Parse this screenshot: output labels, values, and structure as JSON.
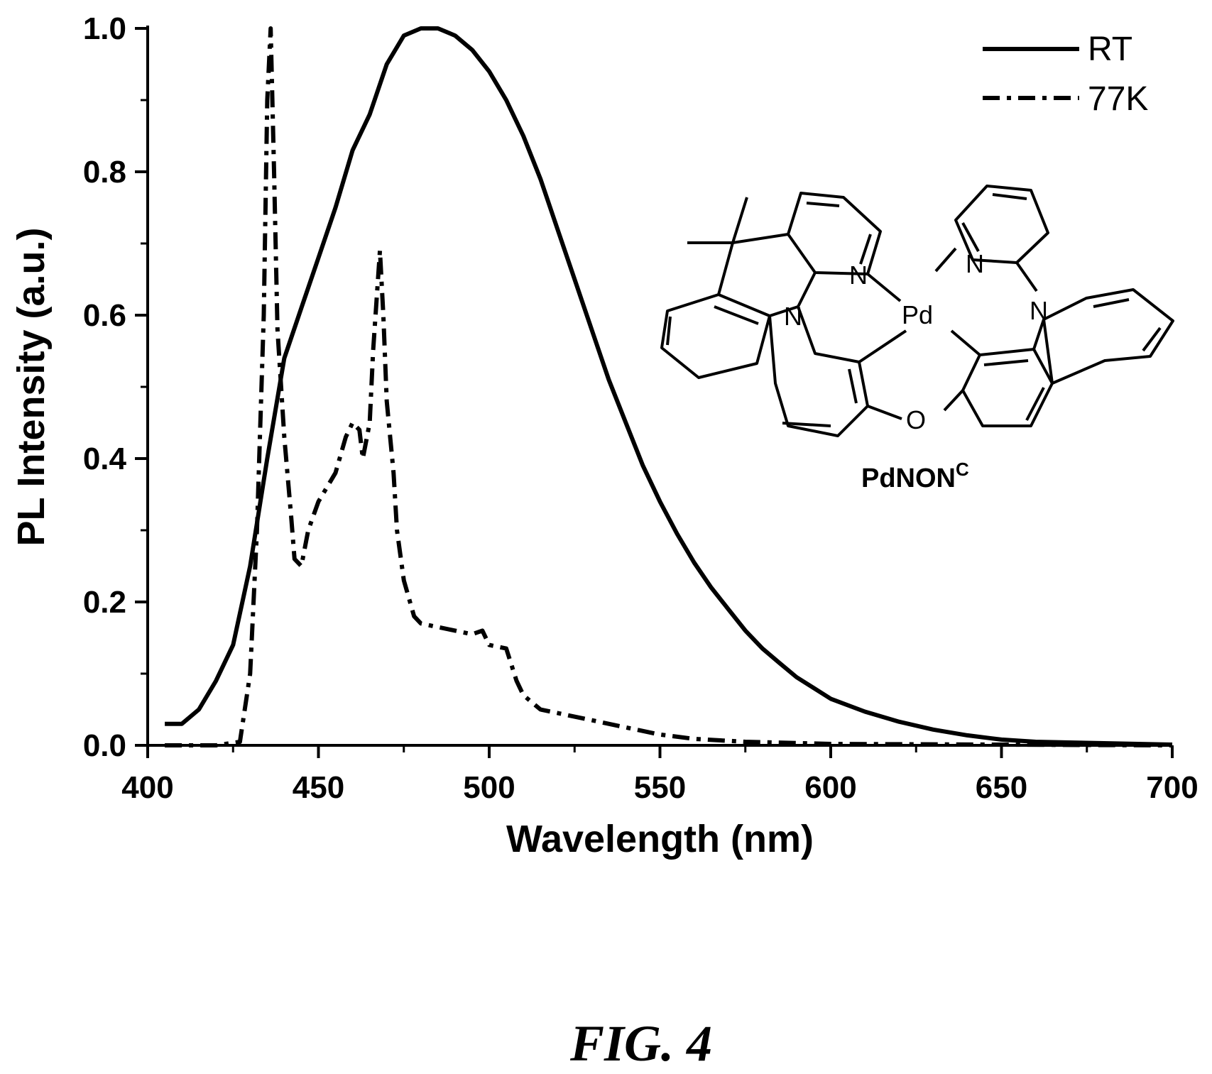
{
  "chart_data": {
    "type": "line",
    "xlabel": "Wavelength (nm)",
    "ylabel": "PL Intensity (a.u.)",
    "xlim": [
      400,
      700
    ],
    "ylim": [
      0,
      1.0
    ],
    "x_ticks": [
      "400",
      "450",
      "500",
      "550",
      "600",
      "650",
      "700"
    ],
    "y_ticks": [
      "0.0",
      "0.2",
      "0.4",
      "0.6",
      "0.8",
      "1.0"
    ],
    "legend_position": "top-right",
    "grid": false,
    "series": [
      {
        "name": "RT",
        "style": "solid",
        "color": "#000000",
        "x": [
          405,
          410,
          415,
          420,
          425,
          430,
          435,
          440,
          445,
          450,
          455,
          460,
          465,
          470,
          475,
          480,
          485,
          490,
          495,
          500,
          505,
          510,
          515,
          520,
          525,
          530,
          535,
          540,
          545,
          550,
          555,
          560,
          565,
          570,
          575,
          580,
          585,
          590,
          595,
          600,
          610,
          620,
          630,
          640,
          650,
          660,
          670,
          680,
          690,
          700
        ],
        "y": [
          0.03,
          0.03,
          0.05,
          0.09,
          0.14,
          0.25,
          0.4,
          0.54,
          0.61,
          0.68,
          0.75,
          0.83,
          0.88,
          0.95,
          0.99,
          1.0,
          1.0,
          0.99,
          0.97,
          0.94,
          0.9,
          0.85,
          0.79,
          0.72,
          0.65,
          0.58,
          0.51,
          0.45,
          0.39,
          0.34,
          0.295,
          0.255,
          0.22,
          0.19,
          0.16,
          0.135,
          0.115,
          0.095,
          0.08,
          0.065,
          0.047,
          0.033,
          0.022,
          0.014,
          0.008,
          0.005,
          0.004,
          0.003,
          0.002,
          0.001
        ]
      },
      {
        "name": "77K",
        "style": "dash-dot",
        "color": "#000000",
        "x": [
          405,
          410,
          420,
          427,
          430,
          432,
          434,
          435,
          436,
          437,
          438,
          440,
          442,
          443,
          445,
          447,
          450,
          455,
          458,
          460,
          462,
          463,
          465,
          466,
          467,
          468,
          469,
          470,
          472,
          473,
          475,
          478,
          480,
          485,
          490,
          495,
          498,
          500,
          505,
          508,
          510,
          515,
          520,
          530,
          540,
          550,
          560,
          575,
          600,
          650,
          700
        ],
        "y": [
          0.0,
          0.0,
          0.0,
          0.005,
          0.1,
          0.3,
          0.6,
          0.9,
          1.0,
          0.8,
          0.58,
          0.43,
          0.32,
          0.26,
          0.25,
          0.3,
          0.34,
          0.38,
          0.43,
          0.45,
          0.44,
          0.4,
          0.45,
          0.55,
          0.62,
          0.69,
          0.6,
          0.48,
          0.38,
          0.3,
          0.23,
          0.18,
          0.17,
          0.165,
          0.16,
          0.155,
          0.16,
          0.14,
          0.135,
          0.09,
          0.07,
          0.05,
          0.045,
          0.035,
          0.025,
          0.015,
          0.009,
          0.005,
          0.002,
          0.001,
          0.0
        ]
      }
    ],
    "annotations": {
      "compound_label_main": "PdNON",
      "compound_label_sup": "C",
      "atom_labels": [
        "N",
        "N",
        "N",
        "N",
        "Pd",
        "O"
      ]
    }
  },
  "caption": "FIG. 4"
}
